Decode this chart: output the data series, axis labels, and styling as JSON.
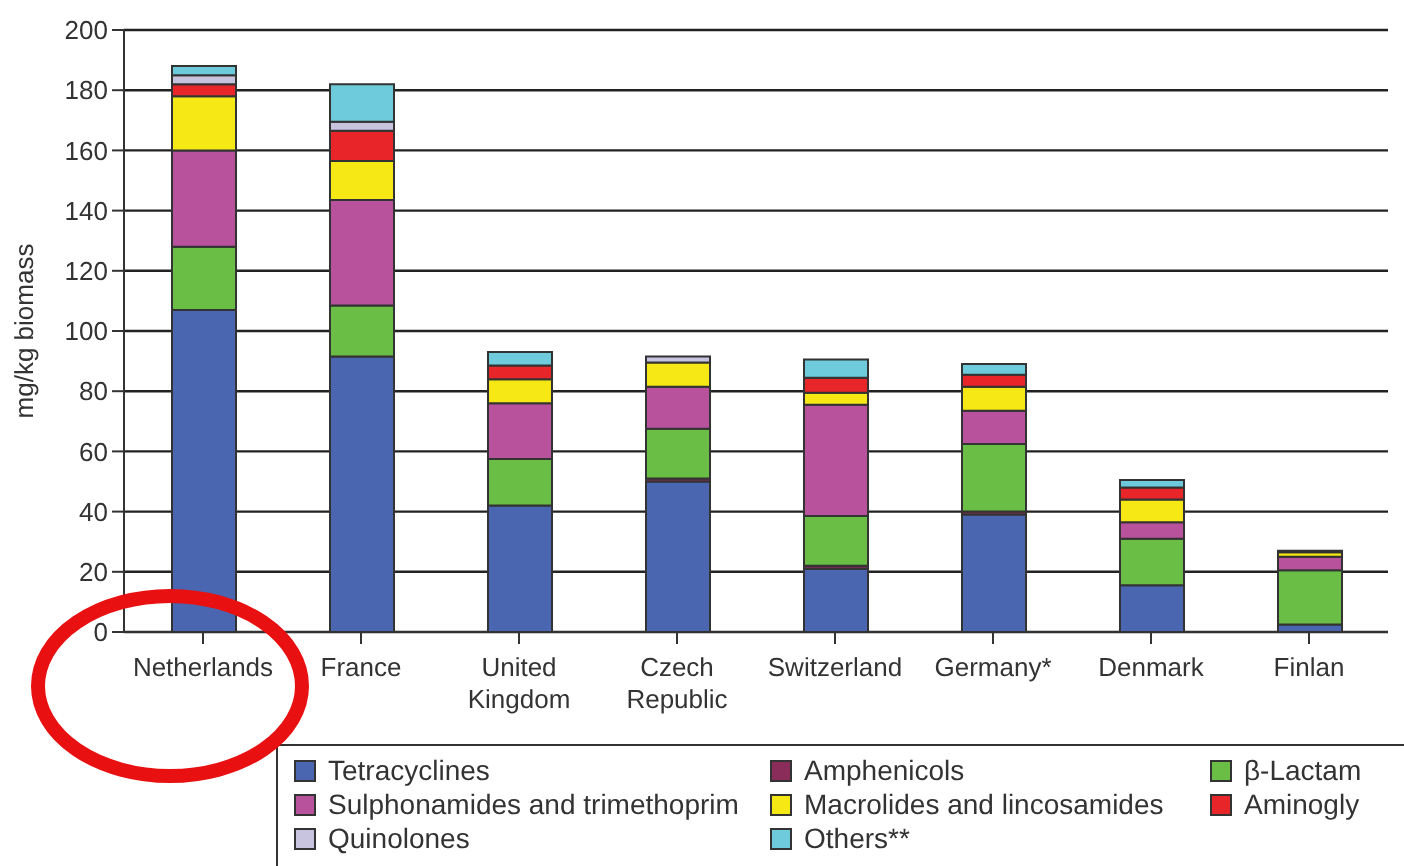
{
  "chart_data": {
    "type": "bar",
    "stacked": true,
    "ylabel": "mg/kg biomass",
    "categories": [
      "Netherlands",
      "France",
      "United Kingdom",
      "Czech Republic",
      "Switzerland",
      "Germany*",
      "Denmark",
      "Finlan"
    ],
    "series": [
      {
        "name": "Tetracyclines",
        "color": "#4a66b0",
        "values": [
          107,
          91.5,
          42,
          50,
          21,
          39,
          15.5,
          2.5
        ]
      },
      {
        "name": "Amphenicols",
        "color": "#8b2d5a",
        "values": [
          0,
          0,
          0,
          1,
          1,
          1,
          0,
          0
        ]
      },
      {
        "name": "β-Lactam",
        "color": "#6abd45",
        "values": [
          21,
          17,
          15.5,
          16.5,
          16.5,
          22.5,
          15.5,
          18
        ]
      },
      {
        "name": "Sulphonamides and trimethoprim",
        "color": "#b9529c",
        "values": [
          32,
          35,
          18.5,
          14,
          37,
          11,
          5.5,
          4.5
        ]
      },
      {
        "name": "Macrolides and lincosamides",
        "color": "#f5e814",
        "values": [
          18,
          13,
          8,
          8,
          4,
          8,
          7.5,
          1.5
        ]
      },
      {
        "name": "Aminogly",
        "color": "#e8262a",
        "values": [
          4,
          10,
          4.5,
          0,
          5,
          4,
          4,
          0.5
        ]
      },
      {
        "name": "Quinolones",
        "color": "#c8c4e0",
        "values": [
          3,
          3,
          0,
          2,
          null,
          null,
          0,
          0
        ]
      },
      {
        "name": "Others**",
        "color": "#6ecbdc",
        "values": [
          3,
          12.5,
          4.5,
          null,
          6,
          3.5,
          2.5,
          0
        ]
      }
    ],
    "ylim": [
      0,
      200
    ],
    "yticks": [
      0,
      20,
      40,
      60,
      80,
      100,
      120,
      140,
      160,
      180,
      200
    ],
    "grid": "y",
    "legend": "bottom"
  }
}
